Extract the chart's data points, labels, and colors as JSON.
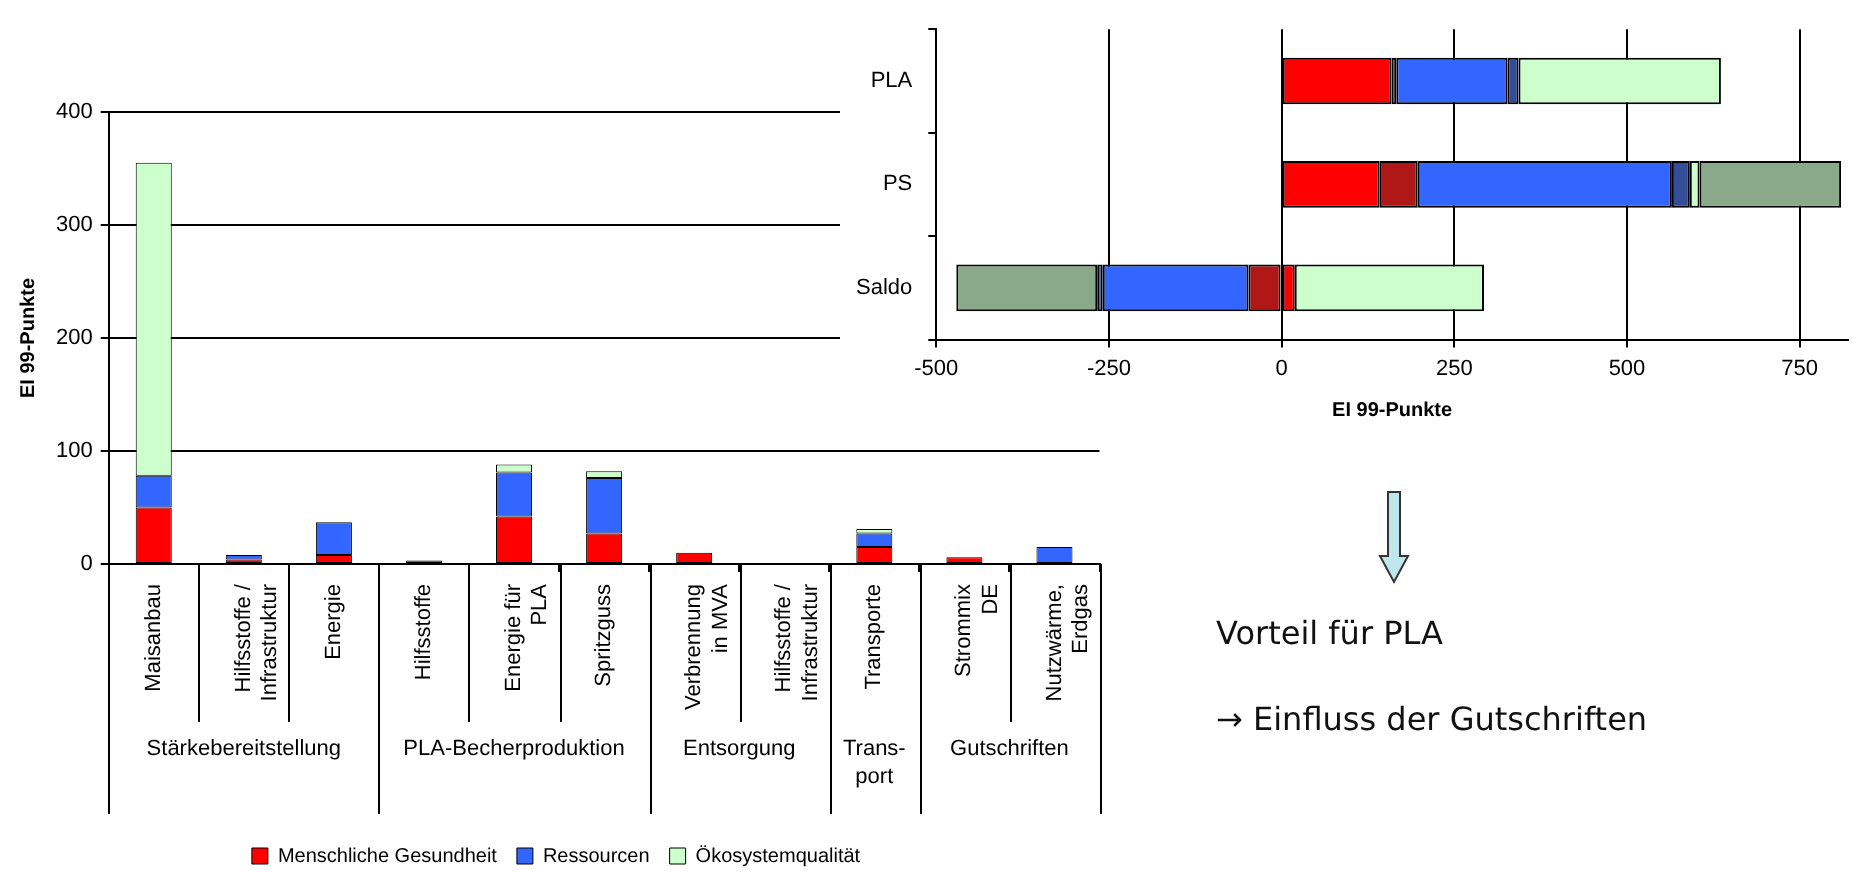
{
  "chart_data": [
    {
      "type": "bar",
      "ylabel": "EI 99-Punkte",
      "stacked": true,
      "grid": "y",
      "legend": "bottom",
      "categories": [
        "Maisanbau",
        "Hilfsstoffe /\nInfrastruktur",
        "Energie",
        "Hilfsstoffe",
        "Energie für\nPLA",
        "Spritzguss",
        "Verbrennung\nin MVA",
        "Hilfsstoffe /\nInfrastruktur",
        "Transporte",
        "Strommix\nDE",
        "Nutzwärme,\nErdgas"
      ],
      "series": [
        {
          "name": "Menschliche Gesundheit",
          "color": "#ff0000",
          "values": [
            50,
            4,
            8,
            3,
            42,
            27,
            10,
            0,
            15,
            6,
            0
          ]
        },
        {
          "name": "Ressourcen",
          "color": "#3366ff",
          "values": [
            28,
            4,
            29,
            0,
            39,
            49,
            0,
            0,
            12,
            0,
            15
          ]
        },
        {
          "name": "Ökosystemqualität",
          "color": "#ccffcc",
          "values": [
            277,
            0,
            0,
            0,
            7,
            6,
            0,
            0,
            4,
            0,
            0
          ]
        }
      ],
      "ylim": [
        0,
        400
      ],
      "yticks": [
        0,
        100,
        200,
        300,
        400
      ],
      "annotations": [
        "Stärkebereitstellung",
        "PLA-Becherproduktion",
        "Entsorgung",
        "Trans-\nport",
        "Gutschriften"
      ]
    },
    {
      "type": "bar",
      "orientation": "horizontal",
      "stacked": true,
      "grid": "x",
      "xlabel": "EI 99-Punkte",
      "categories": [
        "PLA",
        "PS",
        "Saldo"
      ],
      "series": [
        {
          "color": "#ff0000",
          "values": [
            159,
            142,
            19
          ]
        },
        {
          "color": "#b01818",
          "values": [
            7,
            55,
            -48
          ]
        },
        {
          "color": "#3366ff",
          "values": [
            161,
            368,
            -211
          ]
        },
        {
          "color": "#334d99",
          "values": [
            16,
            26,
            -8
          ]
        },
        {
          "color": "#ccffcc",
          "values": [
            293,
            14,
            274
          ]
        },
        {
          "color": "#8aa88a",
          "values": [
            0,
            205,
            -204
          ]
        }
      ],
      "xlim": [
        -500,
        820
      ],
      "xticks": [
        -500,
        -250,
        0,
        250,
        500,
        750
      ]
    },
    {
      "type": "other",
      "annotations": [
        "Vorteil für PLA",
        "→ Einfluss der Gutschriften"
      ]
    }
  ]
}
